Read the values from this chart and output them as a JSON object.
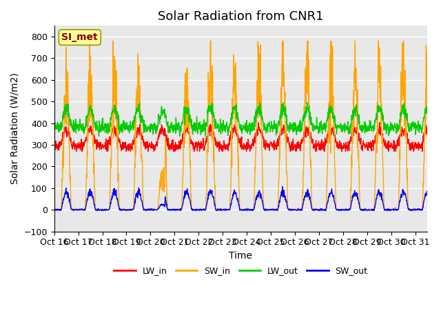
{
  "title": "Solar Radiation from CNR1",
  "ylabel": "Solar Radiation (W/m2)",
  "xlabel": "Time",
  "ylim": [
    -100,
    850
  ],
  "yticks": [
    -100,
    0,
    100,
    200,
    300,
    400,
    500,
    600,
    700,
    800
  ],
  "xlim": [
    0,
    15.5
  ],
  "xtick_positions": [
    0,
    1,
    2,
    3,
    4,
    5,
    6,
    7,
    8,
    9,
    10,
    11,
    12,
    13,
    14,
    15
  ],
  "xtick_labels": [
    "Oct 16",
    "Oct 17",
    "Oct 18",
    "Oct 19",
    "Oct 20",
    "Oct 21",
    "Oct 22",
    "Oct 23",
    "Oct 24",
    "Oct 25",
    "Oct 26",
    "Oct 27",
    "Oct 28",
    "Oct 29",
    "Oct 30",
    "Oct 31"
  ],
  "annotation_text": "SI_met",
  "annotation_color": "#8B0000",
  "annotation_bg": "#FFFF99",
  "colors": {
    "LW_in": "#FF0000",
    "SW_in": "#FFA500",
    "LW_out": "#00CC00",
    "SW_out": "#0000FF"
  },
  "bg_color": "#E8E8E8",
  "grid_color": "#FFFFFF",
  "title_fontsize": 13,
  "axis_fontsize": 10,
  "tick_fontsize": 9,
  "n_days": 16,
  "lw_in_base": 310,
  "lw_out_base": 380,
  "sw_in_peak": 700,
  "sw_out_peak": 95
}
